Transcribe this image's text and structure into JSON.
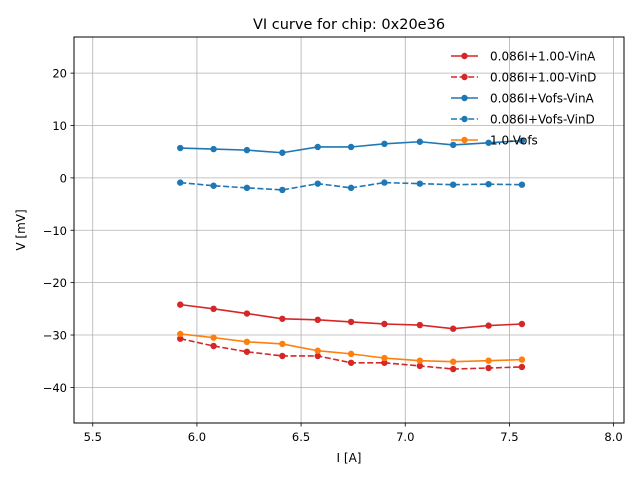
{
  "chart_data": {
    "type": "line",
    "title": "VI curve for chip: 0x20e36",
    "xlabel": "I [A]",
    "ylabel": "V [mV]",
    "xlim": [
      5.41,
      8.05
    ],
    "ylim": [
      -46.8,
      26.9
    ],
    "xticks": [
      5.5,
      6.0,
      6.5,
      7.0,
      7.5,
      8.0
    ],
    "xtick_labels": [
      "5.5",
      "6.0",
      "6.5",
      "7.0",
      "7.5",
      "8.0"
    ],
    "yticks": [
      20,
      10,
      0,
      -10,
      -20,
      -30,
      -40
    ],
    "ytick_labels": [
      "20",
      "10",
      "0",
      "−10",
      "−20",
      "−30",
      "−40"
    ],
    "grid": true,
    "legend_position": "top-right",
    "x": [
      5.92,
      6.08,
      6.24,
      6.41,
      6.58,
      6.74,
      6.9,
      7.07,
      7.23,
      7.4,
      7.56
    ],
    "series": [
      {
        "name": "0.086I+1.00-VinA",
        "color": "#d62728",
        "dashed": false,
        "values": [
          -24.2,
          -25.0,
          -25.9,
          -26.9,
          -27.1,
          -27.5,
          -27.9,
          -28.1,
          -28.8,
          -28.2,
          -27.9
        ]
      },
      {
        "name": "0.086I+1.00-VinD",
        "color": "#d62728",
        "dashed": true,
        "values": [
          -30.7,
          -32.1,
          -33.2,
          -34.0,
          -34.0,
          -35.3,
          -35.3,
          -35.9,
          -36.5,
          -36.3,
          -36.1
        ]
      },
      {
        "name": "0.086I+Vofs-VinA",
        "color": "#1f77b4",
        "dashed": false,
        "values": [
          5.7,
          5.5,
          5.3,
          4.8,
          5.9,
          5.9,
          6.5,
          6.9,
          6.3,
          6.7,
          7.1
        ]
      },
      {
        "name": "0.086I+Vofs-VinD",
        "color": "#1f77b4",
        "dashed": true,
        "values": [
          -0.9,
          -1.5,
          -1.9,
          -2.3,
          -1.1,
          -1.9,
          -0.9,
          -1.1,
          -1.3,
          -1.2,
          -1.3
        ]
      },
      {
        "name": "1.0-Vofs",
        "color": "#ff7f0e",
        "dashed": false,
        "values": [
          -29.8,
          -30.5,
          -31.3,
          -31.7,
          -33.0,
          -33.6,
          -34.4,
          -34.9,
          -35.1,
          -34.9,
          -34.7
        ]
      }
    ]
  }
}
